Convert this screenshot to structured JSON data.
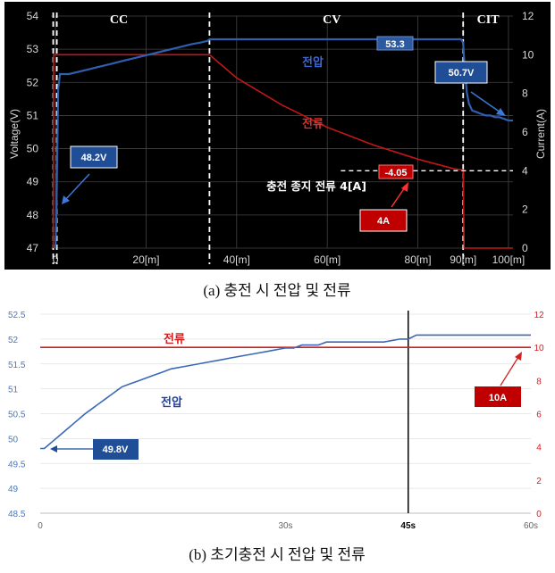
{
  "chart_data": [
    {
      "type": "line",
      "caption": "(a) 충전 시 전압 및 전류",
      "ylabel_left": "Voltage(V)",
      "ylabel_right": "Current(A)",
      "ylim_left": [
        47,
        54
      ],
      "ylim_right": [
        0,
        12
      ],
      "xlim": [
        -1,
        101
      ],
      "x_ticks": [
        {
          "v": 0,
          "label": "0"
        },
        {
          "v": 20,
          "label": "20[m]"
        },
        {
          "v": 40,
          "label": "40[m]"
        },
        {
          "v": 60,
          "label": "60[m]"
        },
        {
          "v": 80,
          "label": "80[m]"
        },
        {
          "v": 90,
          "label": "90[m]"
        },
        {
          "v": 100,
          "label": "100[m]"
        }
      ],
      "y_ticks_left": [
        47,
        48,
        49,
        50,
        51,
        52,
        53,
        54
      ],
      "y_ticks_right": [
        0,
        2,
        4,
        6,
        8,
        10,
        12
      ],
      "grid": true,
      "phases": [
        {
          "label": "CC",
          "x": 14
        },
        {
          "label": "CV",
          "x": 61
        },
        {
          "label": "CIT",
          "x": 95.5
        }
      ],
      "phase_boundaries": [
        -0.5,
        0.3,
        34,
        90
      ],
      "series": [
        {
          "name": "전압",
          "axis": "left",
          "color": "#2f5fae",
          "x": [
            0,
            0.2,
            0.6,
            1,
            3,
            6,
            9,
            12,
            15,
            18,
            21,
            24,
            27,
            30,
            32,
            33.5,
            34,
            40,
            60,
            80,
            88,
            89,
            89.5,
            90,
            90.3,
            90.8,
            91.3,
            92,
            93,
            94,
            95,
            96,
            97,
            98,
            99,
            100,
            101
          ],
          "values": [
            47,
            48,
            51.8,
            52.25,
            52.25,
            52.35,
            52.45,
            52.55,
            52.65,
            52.75,
            52.85,
            52.95,
            53.05,
            53.15,
            53.2,
            53.25,
            53.3,
            53.3,
            53.3,
            53.3,
            53.3,
            53.3,
            53.3,
            53.2,
            52.5,
            51.7,
            51.35,
            51.15,
            51.1,
            51.05,
            51.0,
            51.0,
            50.95,
            50.95,
            50.9,
            50.85,
            50.85
          ]
        },
        {
          "name": "전류",
          "axis": "right",
          "color": "#c01818",
          "x": [
            -0.5,
            -0.4,
            0,
            10,
            20,
            30,
            34,
            40,
            50,
            60,
            70,
            80,
            88,
            90,
            90.2,
            91,
            101
          ],
          "values": [
            0,
            10,
            10,
            10,
            10,
            10,
            10,
            8.8,
            7.4,
            6.25,
            5.35,
            4.6,
            4.1,
            4.05,
            0,
            0,
            0
          ]
        }
      ],
      "annotations": {
        "series_label_voltage": "전압",
        "series_label_current": "전류",
        "stop_current_label": "충전 종지 전류 4[A]",
        "stop_current_value": 4,
        "voltage_flag": "53.3",
        "current_flag": "-4.05",
        "callout_start_voltage": "48.2V",
        "callout_end_voltage": "50.7V",
        "callout_current": "4A"
      }
    },
    {
      "type": "line",
      "caption": "(b) 초기충전 시 전압 및 전류",
      "ylim_left": [
        48.5,
        52.5
      ],
      "ylim_right": [
        0,
        12
      ],
      "xlim": [
        0,
        60
      ],
      "x_ticks": [
        {
          "v": 0,
          "label": "0"
        },
        {
          "v": 30,
          "label": "30s"
        },
        {
          "v": 45,
          "label": "45s"
        },
        {
          "v": 60,
          "label": "60s"
        }
      ],
      "y_ticks_left": [
        48.5,
        49,
        49.5,
        50,
        50.5,
        51,
        51.5,
        52,
        52.5
      ],
      "y_ticks_left_labels": [
        "48.5",
        "49",
        "49.5",
        "50",
        "50.5",
        "51",
        "51.5",
        "52",
        "52.5"
      ],
      "y_ticks_right": [
        0,
        2,
        4,
        6,
        8,
        10,
        12
      ],
      "grid": true,
      "marker_line_x": 45,
      "series": [
        {
          "name": "전압",
          "axis": "left",
          "color": "#3b68b8",
          "x": [
            0,
            0.5,
            1,
            1.5,
            2,
            2.5,
            3,
            3.5,
            4,
            4.5,
            5,
            5.5,
            6,
            6.5,
            7,
            7.5,
            8,
            8.5,
            9,
            9.5,
            10,
            11,
            12,
            13,
            14,
            15,
            16,
            18,
            20,
            22,
            24,
            26,
            28,
            30,
            31,
            32,
            33,
            34,
            35,
            36,
            38,
            40,
            42,
            44,
            45,
            46,
            48,
            50,
            52,
            54,
            56,
            58,
            60
          ],
          "values": [
            49.8,
            49.8,
            49.87,
            49.94,
            50.01,
            50.08,
            50.15,
            50.22,
            50.29,
            50.36,
            50.43,
            50.5,
            50.56,
            50.62,
            50.68,
            50.74,
            50.8,
            50.86,
            50.92,
            50.98,
            51.04,
            51.1,
            51.16,
            51.22,
            51.28,
            51.34,
            51.4,
            51.46,
            51.52,
            51.58,
            51.64,
            51.7,
            51.76,
            51.82,
            51.82,
            51.88,
            51.88,
            51.88,
            51.94,
            51.94,
            51.94,
            51.94,
            51.94,
            52.0,
            52.0,
            52.08,
            52.08,
            52.08,
            52.08,
            52.08,
            52.08,
            52.08,
            52.08
          ]
        },
        {
          "name": "전류",
          "axis": "right",
          "color": "#d02020",
          "x": [
            0,
            60
          ],
          "values": [
            10,
            10
          ]
        }
      ],
      "annotations": {
        "series_label_voltage": "전압",
        "series_label_current": "전류",
        "callout_start_voltage": "49.8V",
        "callout_current": "10A"
      }
    }
  ]
}
